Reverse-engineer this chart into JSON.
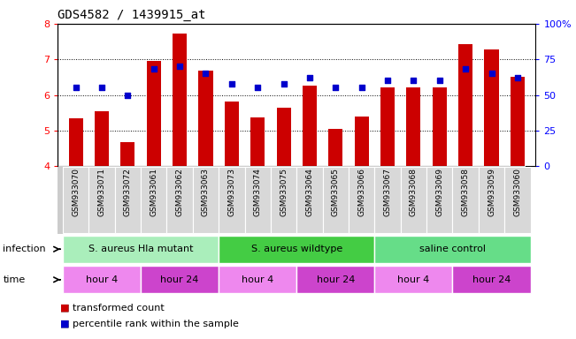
{
  "title": "GDS4582 / 1439915_at",
  "samples": [
    "GSM933070",
    "GSM933071",
    "GSM933072",
    "GSM933061",
    "GSM933062",
    "GSM933063",
    "GSM933073",
    "GSM933074",
    "GSM933075",
    "GSM933064",
    "GSM933065",
    "GSM933066",
    "GSM933067",
    "GSM933068",
    "GSM933069",
    "GSM933058",
    "GSM933059",
    "GSM933060"
  ],
  "bar_values": [
    5.35,
    5.55,
    4.68,
    6.95,
    7.72,
    6.68,
    5.82,
    5.37,
    5.65,
    6.25,
    5.05,
    5.4,
    6.22,
    6.22,
    6.22,
    7.42,
    7.28,
    6.52
  ],
  "dot_values": [
    55,
    55,
    50,
    68,
    70,
    65,
    58,
    55,
    58,
    62,
    55,
    55,
    60,
    60,
    60,
    68,
    65,
    62
  ],
  "ylim": [
    4,
    8
  ],
  "yticks": [
    4,
    5,
    6,
    7,
    8
  ],
  "right_yticks": [
    0,
    25,
    50,
    75,
    100
  ],
  "right_ylim": [
    0,
    100
  ],
  "bar_color": "#cc0000",
  "dot_color": "#0000cc",
  "infection_groups": [
    {
      "label": "S. aureus Hla mutant",
      "start": 0,
      "end": 6,
      "color": "#aaeebb"
    },
    {
      "label": "S. aureus wildtype",
      "start": 6,
      "end": 12,
      "color": "#44cc44"
    },
    {
      "label": "saline control",
      "start": 12,
      "end": 18,
      "color": "#66dd88"
    }
  ],
  "time_groups": [
    {
      "label": "hour 4",
      "start": 0,
      "end": 3,
      "color": "#ee88ee"
    },
    {
      "label": "hour 24",
      "start": 3,
      "end": 6,
      "color": "#cc44cc"
    },
    {
      "label": "hour 4",
      "start": 6,
      "end": 9,
      "color": "#ee88ee"
    },
    {
      "label": "hour 24",
      "start": 9,
      "end": 12,
      "color": "#cc44cc"
    },
    {
      "label": "hour 4",
      "start": 12,
      "end": 15,
      "color": "#ee88ee"
    },
    {
      "label": "hour 24",
      "start": 15,
      "end": 18,
      "color": "#cc44cc"
    }
  ],
  "legend_items": [
    {
      "label": "transformed count",
      "color": "#cc0000"
    },
    {
      "label": "percentile rank within the sample",
      "color": "#0000cc"
    }
  ],
  "sample_label_fontsize": 6.5,
  "title_fontsize": 10,
  "tick_fontsize": 8,
  "annot_fontsize": 8,
  "label_area_color": "#cccccc"
}
